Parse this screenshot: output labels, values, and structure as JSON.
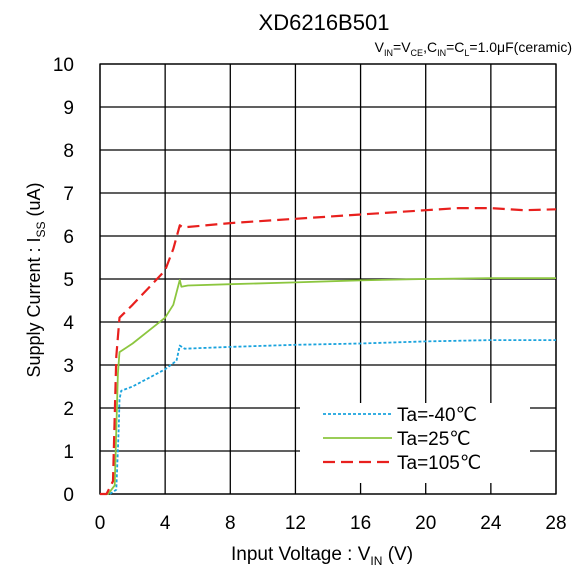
{
  "chart_data": {
    "type": "line",
    "title": "XD6216B501",
    "subtitle_parts": {
      "vin": "V",
      "vin_sub": "IN",
      "eq1": "=",
      "vce": "V",
      "vce_sub": "CE",
      "comma": ",",
      "cin": "C",
      "cin_sub": "IN",
      "eq2": "=",
      "cl": "C",
      "cl_sub": "L",
      "rest": "=1.0μF(ceramic)"
    },
    "xlabel_parts": {
      "main": "Input Voltage : V",
      "sub": "IN",
      "unit": " (V)"
    },
    "ylabel_parts": {
      "main": "Supply Current : I",
      "sub": "SS",
      "unit": " (uA)"
    },
    "xlim": [
      0,
      28
    ],
    "ylim": [
      0,
      10
    ],
    "xticks": [
      "0",
      "4",
      "8",
      "12",
      "16",
      "20",
      "24",
      "28"
    ],
    "yticks": [
      "0",
      "1",
      "2",
      "3",
      "4",
      "5",
      "6",
      "7",
      "8",
      "9",
      "10"
    ],
    "grid": true,
    "legend_position": "bottom-right",
    "series": [
      {
        "name": "Ta=-40℃",
        "color": "#1aa3dd",
        "dash": "dotted",
        "x": [
          0,
          0.6,
          1.0,
          1.15,
          1.2,
          1.3,
          2.0,
          3.0,
          4.0,
          4.7,
          4.9,
          5.2,
          8,
          12,
          16,
          20,
          24,
          28
        ],
        "y": [
          0,
          0,
          0.1,
          1.5,
          2.2,
          2.4,
          2.5,
          2.7,
          2.9,
          3.1,
          3.45,
          3.38,
          3.42,
          3.47,
          3.5,
          3.55,
          3.58,
          3.58
        ]
      },
      {
        "name": "Ta=25℃",
        "color": "#8cc63f",
        "dash": "solid",
        "x": [
          0,
          0.5,
          0.9,
          1.0,
          1.1,
          1.2,
          2.0,
          3.0,
          4.0,
          4.5,
          4.9,
          5.0,
          5.4,
          8,
          12,
          16,
          20,
          24,
          28
        ],
        "y": [
          0,
          0,
          0.2,
          1.5,
          2.8,
          3.3,
          3.5,
          3.8,
          4.1,
          4.4,
          4.98,
          4.82,
          4.85,
          4.88,
          4.92,
          4.97,
          5.0,
          5.02,
          5.02
        ]
      },
      {
        "name": "Ta=105℃",
        "color": "#e8201e",
        "dash": "dashed",
        "x": [
          0,
          0.4,
          0.8,
          0.9,
          1.0,
          1.2,
          2.0,
          3.0,
          4.0,
          4.5,
          4.9,
          5.1,
          8,
          12,
          16,
          20,
          22,
          24,
          26,
          28
        ],
        "y": [
          0,
          0,
          0.3,
          1.8,
          3.2,
          4.1,
          4.4,
          4.8,
          5.2,
          5.7,
          6.25,
          6.2,
          6.3,
          6.4,
          6.5,
          6.6,
          6.65,
          6.65,
          6.6,
          6.62
        ]
      }
    ]
  }
}
